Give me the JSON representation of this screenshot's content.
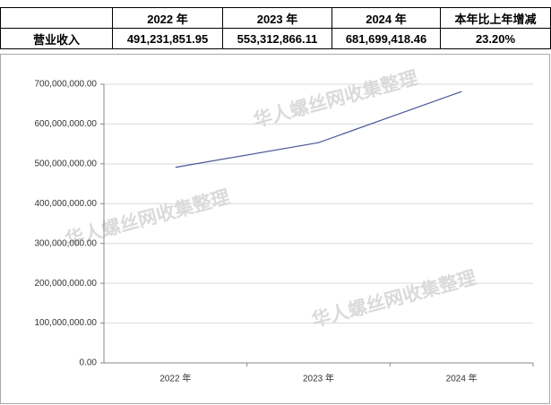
{
  "table": {
    "header": [
      "2022 年",
      "2023 年",
      "2024 年",
      "本年比上年增减"
    ],
    "rows": [
      [
        "营业收入",
        "491,231,851.95",
        "553,312,866.11",
        "681,699,418.46",
        "23.20%"
      ]
    ]
  },
  "watermark": "华人螺丝网收集整理",
  "chart_data": {
    "type": "line",
    "categories": [
      "2022 年",
      "2023 年",
      "2024 年"
    ],
    "values": [
      491231851.95,
      553312866.11,
      681699418.46
    ],
    "color": "#4a5899",
    "ylim": [
      0,
      700000000
    ],
    "yticks": [
      {
        "value": 0,
        "label": "0.00"
      },
      {
        "value": 100000000,
        "label": "100,000,000.00"
      },
      {
        "value": 200000000,
        "label": "200,000,000.00"
      },
      {
        "value": 300000000,
        "label": "300,000,000.00"
      },
      {
        "value": 400000000,
        "label": "400,000,000.00"
      },
      {
        "value": 500000000,
        "label": "500,000,000.00"
      },
      {
        "value": 600000000,
        "label": "600,000,000.00"
      },
      {
        "value": 700000000,
        "label": "700,000,000.00"
      }
    ],
    "grid": true
  }
}
